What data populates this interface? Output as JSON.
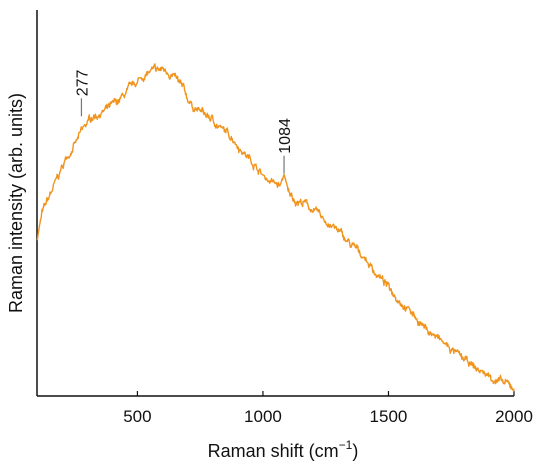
{
  "chart_data": {
    "type": "line",
    "title": "",
    "xlabel": "Raman shift (cm",
    "xlabel_superscript": "−1",
    "xlabel_suffix": ")",
    "ylabel": "Raman intensity (arb. units)",
    "xlim": [
      100,
      2000
    ],
    "ylim": [
      0,
      1
    ],
    "x_ticks": [
      500,
      1000,
      1500,
      2000
    ],
    "x_tick_labels": [
      "500",
      "1000",
      "1500",
      "2000"
    ],
    "y_ticks_shown": false,
    "grid": false,
    "legend": "none",
    "series_color": "#f0941e",
    "annotations": [
      {
        "text": "277",
        "x": 277,
        "y": 0.775
      },
      {
        "text": "1084",
        "x": 1084,
        "y": 0.61
      }
    ],
    "series": [
      {
        "x": [
          100,
          120,
          150,
          180,
          210,
          240,
          260,
          277,
          300,
          320,
          350,
          380,
          420,
          460,
          500,
          530,
          560,
          580,
          600,
          620,
          640,
          660,
          680,
          700,
          720,
          760,
          800,
          840,
          880,
          900,
          920,
          960,
          1000,
          1040,
          1070,
          1080,
          1084,
          1088,
          1100,
          1130,
          1170,
          1200,
          1250,
          1300,
          1350,
          1400,
          1450,
          1500,
          1550,
          1600,
          1650,
          1700,
          1750,
          1800,
          1850,
          1900,
          1950,
          2000
        ],
        "y": [
          0.43,
          0.5,
          0.55,
          0.6,
          0.65,
          0.69,
          0.71,
          0.735,
          0.76,
          0.78,
          0.79,
          0.8,
          0.82,
          0.85,
          0.88,
          0.9,
          0.91,
          0.91,
          0.915,
          0.91,
          0.9,
          0.88,
          0.86,
          0.83,
          0.81,
          0.79,
          0.77,
          0.74,
          0.72,
          0.7,
          0.68,
          0.65,
          0.61,
          0.59,
          0.58,
          0.6,
          0.62,
          0.6,
          0.56,
          0.54,
          0.53,
          0.51,
          0.48,
          0.45,
          0.41,
          0.38,
          0.33,
          0.29,
          0.25,
          0.21,
          0.17,
          0.14,
          0.11,
          0.08,
          0.055,
          0.035,
          0.015,
          0.0
        ]
      }
    ]
  }
}
